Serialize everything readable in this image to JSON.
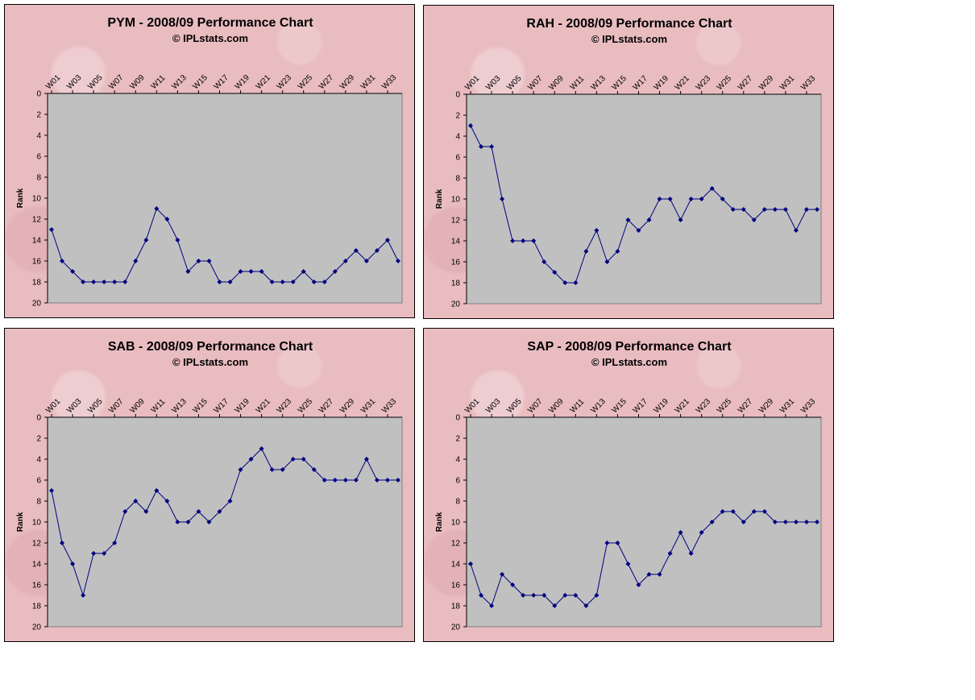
{
  "colors": {
    "series": "#000080",
    "plot_background": "#c0c0c0",
    "panel_background": "#e9bcc0"
  },
  "chart_data": [
    {
      "type": "line",
      "title": "PYM - 2008/09 Performance Chart",
      "subtitle": "© IPLstats.com",
      "ylabel": "Rank",
      "ylim": [
        0,
        20
      ],
      "y_reversed": true,
      "y_ticks": [
        "0",
        "2",
        "4",
        "6",
        "8",
        "10",
        "12",
        "14",
        "16",
        "18",
        "20"
      ],
      "x_tick_labels": [
        "W01",
        "W03",
        "W05",
        "W07",
        "W09",
        "W11",
        "W13",
        "W15",
        "W17",
        "W19",
        "W21",
        "W23",
        "W25",
        "W27",
        "W29",
        "W31",
        "W33"
      ],
      "categories": [
        "W01",
        "W02",
        "W03",
        "W04",
        "W05",
        "W06",
        "W07",
        "W08",
        "W09",
        "W10",
        "W11",
        "W12",
        "W13",
        "W14",
        "W15",
        "W16",
        "W17",
        "W18",
        "W19",
        "W20",
        "W21",
        "W22",
        "W23",
        "W24",
        "W25",
        "W26",
        "W27",
        "W28",
        "W29",
        "W30",
        "W31",
        "W32",
        "W33",
        "W34"
      ],
      "values": [
        13,
        16,
        17,
        18,
        18,
        18,
        18,
        18,
        16,
        14,
        11,
        12,
        14,
        17,
        16,
        16,
        18,
        18,
        17,
        17,
        17,
        18,
        18,
        18,
        17,
        18,
        18,
        17,
        16,
        15,
        16,
        15,
        14,
        16
      ]
    },
    {
      "type": "line",
      "title": "RAH - 2008/09 Performance Chart",
      "subtitle": "© IPLstats.com",
      "ylabel": "Rank",
      "ylim": [
        0,
        20
      ],
      "y_reversed": true,
      "y_ticks": [
        "0",
        "2",
        "4",
        "6",
        "8",
        "10",
        "12",
        "14",
        "16",
        "18",
        "20"
      ],
      "x_tick_labels": [
        "W01",
        "W03",
        "W05",
        "W07",
        "W09",
        "W11",
        "W13",
        "W15",
        "W17",
        "W19",
        "W21",
        "W23",
        "W25",
        "W27",
        "W29",
        "W31",
        "W33"
      ],
      "categories": [
        "W01",
        "W02",
        "W03",
        "W04",
        "W05",
        "W06",
        "W07",
        "W08",
        "W09",
        "W10",
        "W11",
        "W12",
        "W13",
        "W14",
        "W15",
        "W16",
        "W17",
        "W18",
        "W19",
        "W20",
        "W21",
        "W22",
        "W23",
        "W24",
        "W25",
        "W26",
        "W27",
        "W28",
        "W29",
        "W30",
        "W31",
        "W32",
        "W33",
        "W34"
      ],
      "values": [
        3,
        5,
        5,
        10,
        14,
        14,
        14,
        16,
        17,
        18,
        18,
        15,
        13,
        16,
        15,
        12,
        13,
        12,
        10,
        10,
        12,
        10,
        10,
        9,
        10,
        11,
        11,
        12,
        11,
        11,
        11,
        13,
        11,
        11
      ]
    },
    {
      "type": "line",
      "title": "SAB - 2008/09 Performance Chart",
      "subtitle": "© IPLstats.com",
      "ylabel": "Rank",
      "ylim": [
        0,
        20
      ],
      "y_reversed": true,
      "y_ticks": [
        "0",
        "2",
        "4",
        "6",
        "8",
        "10",
        "12",
        "14",
        "16",
        "18",
        "20"
      ],
      "x_tick_labels": [
        "W01",
        "W03",
        "W05",
        "W07",
        "W09",
        "W11",
        "W13",
        "W15",
        "W17",
        "W19",
        "W21",
        "W23",
        "W25",
        "W27",
        "W29",
        "W31",
        "W33"
      ],
      "categories": [
        "W01",
        "W02",
        "W03",
        "W04",
        "W05",
        "W06",
        "W07",
        "W08",
        "W09",
        "W10",
        "W11",
        "W12",
        "W13",
        "W14",
        "W15",
        "W16",
        "W17",
        "W18",
        "W19",
        "W20",
        "W21",
        "W22",
        "W23",
        "W24",
        "W25",
        "W26",
        "W27",
        "W28",
        "W29",
        "W30",
        "W31",
        "W32",
        "W33",
        "W34"
      ],
      "values": [
        7,
        12,
        14,
        17,
        13,
        13,
        12,
        9,
        8,
        9,
        7,
        8,
        10,
        10,
        9,
        10,
        9,
        8,
        5,
        4,
        3,
        5,
        5,
        4,
        4,
        5,
        6,
        6,
        6,
        6,
        4,
        6,
        6,
        6
      ]
    },
    {
      "type": "line",
      "title": "SAP - 2008/09 Performance Chart",
      "subtitle": "© IPLstats.com",
      "ylabel": "Rank",
      "ylim": [
        0,
        20
      ],
      "y_reversed": true,
      "y_ticks": [
        "0",
        "2",
        "4",
        "6",
        "8",
        "10",
        "12",
        "14",
        "16",
        "18",
        "20"
      ],
      "x_tick_labels": [
        "W01",
        "W03",
        "W05",
        "W07",
        "W09",
        "W11",
        "W13",
        "W15",
        "W17",
        "W19",
        "W21",
        "W23",
        "W25",
        "W27",
        "W29",
        "W31",
        "W33"
      ],
      "categories": [
        "W01",
        "W02",
        "W03",
        "W04",
        "W05",
        "W06",
        "W07",
        "W08",
        "W09",
        "W10",
        "W11",
        "W12",
        "W13",
        "W14",
        "W15",
        "W16",
        "W17",
        "W18",
        "W19",
        "W20",
        "W21",
        "W22",
        "W23",
        "W24",
        "W25",
        "W26",
        "W27",
        "W28",
        "W29",
        "W30",
        "W31",
        "W32",
        "W33",
        "W34"
      ],
      "values": [
        14,
        17,
        18,
        15,
        16,
        17,
        17,
        17,
        18,
        17,
        17,
        18,
        17,
        12,
        12,
        14,
        16,
        15,
        15,
        13,
        11,
        13,
        11,
        10,
        9,
        9,
        10,
        9,
        9,
        10,
        10,
        10,
        10,
        10
      ]
    }
  ]
}
